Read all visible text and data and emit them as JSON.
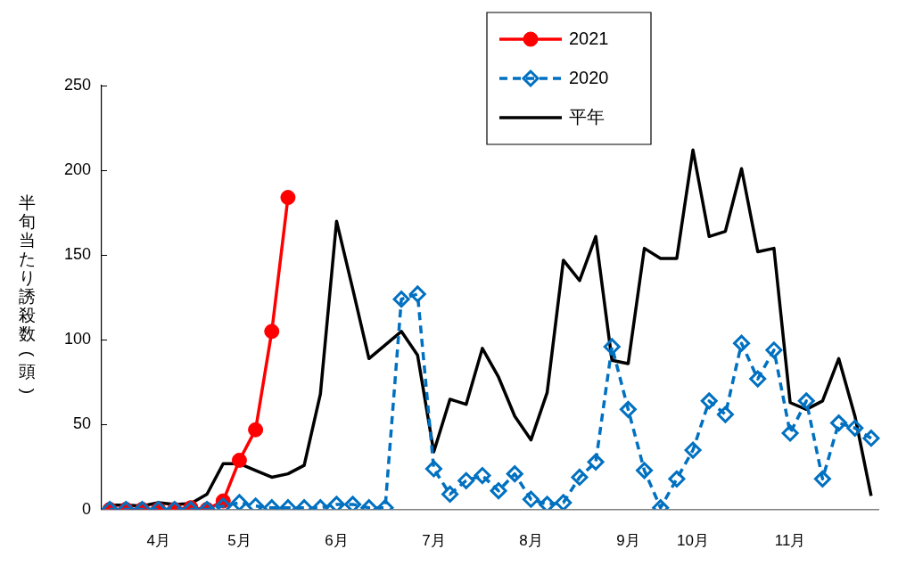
{
  "chart_data": {
    "type": "line",
    "categories": [
      null,
      null,
      null,
      "4月",
      null,
      null,
      null,
      null,
      "5月",
      null,
      null,
      null,
      null,
      null,
      "6月",
      null,
      null,
      null,
      null,
      null,
      "7月",
      null,
      null,
      null,
      null,
      null,
      "8月",
      null,
      null,
      null,
      null,
      null,
      "9月",
      null,
      null,
      null,
      "10月",
      null,
      null,
      null,
      null,
      null,
      "11月",
      null,
      null,
      null,
      null,
      null
    ],
    "ylabel": "半旬当たり誘殺数(頭)",
    "ylim": [
      0,
      250
    ],
    "yticks": [
      0,
      50,
      100,
      150,
      200,
      250
    ],
    "grid": false,
    "legend": "top",
    "series": [
      {
        "name": "2021",
        "color": "#ff0000",
        "marker": "circle",
        "line_style": "solid",
        "values": [
          0,
          0,
          0,
          0,
          0,
          1,
          0,
          5,
          29,
          47,
          105,
          184,
          null,
          null,
          null,
          null,
          null,
          null,
          null,
          null,
          null,
          null,
          null,
          null,
          null,
          null,
          null,
          null,
          null,
          null,
          null,
          null,
          null,
          null,
          null,
          null,
          null,
          null,
          null,
          null,
          null,
          null,
          null,
          null,
          null,
          null,
          null,
          null
        ]
      },
      {
        "name": "2020",
        "color": "#0070c0",
        "marker": "diamond",
        "line_style": "dashed",
        "values": [
          0,
          0,
          0,
          0,
          0,
          0,
          0,
          2,
          4,
          2,
          1,
          1,
          1,
          1,
          3,
          3,
          1,
          1,
          124,
          127,
          24,
          9,
          17,
          20,
          11,
          21,
          6,
          3,
          4,
          19,
          28,
          96,
          59,
          23,
          1,
          18,
          35,
          64,
          56,
          98,
          77,
          94,
          45,
          64,
          18,
          51,
          48,
          42
        ]
      },
      {
        "name": "平年",
        "color": "#000000",
        "marker": "none",
        "line_style": "solid",
        "values": [
          2.5,
          2.5,
          2,
          4,
          3,
          3.5,
          9,
          27,
          27,
          23,
          19,
          21,
          26,
          68,
          170,
          130,
          89,
          97,
          105,
          91,
          34,
          65,
          62,
          95,
          78,
          55,
          41,
          69,
          147,
          135,
          161,
          88,
          86,
          154,
          148,
          148,
          212,
          161,
          164,
          201,
          152,
          154,
          63,
          59,
          64,
          89,
          55,
          8
        ]
      }
    ]
  }
}
